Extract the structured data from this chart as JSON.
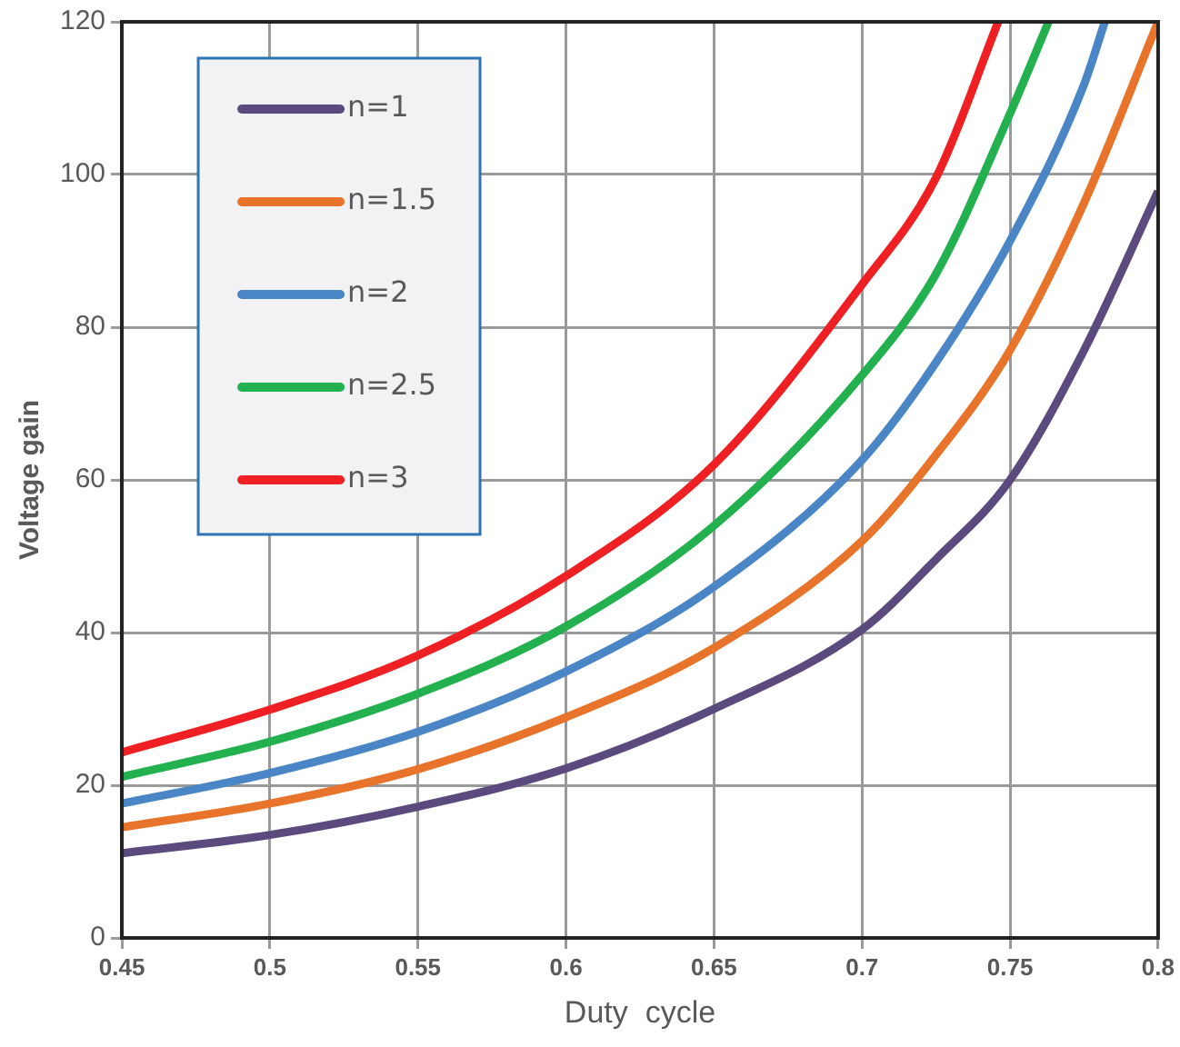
{
  "chart_data": {
    "type": "line",
    "xlabel": "Duty  cycle",
    "ylabel": "Voltage gain",
    "xlim": [
      0.45,
      0.8
    ],
    "xticks": [
      0.45,
      0.5,
      0.55,
      0.6,
      0.65,
      0.7,
      0.75,
      0.8
    ],
    "ylim": [
      0,
      120
    ],
    "yticks": [
      0,
      20,
      40,
      60,
      80,
      100,
      120
    ],
    "grid": true,
    "legend": "top left",
    "marker": "none",
    "series": [
      {
        "name": "n=1",
        "color": "#5b4a7e",
        "x": [
          0.45,
          0.5,
          0.55,
          0.6,
          0.65,
          0.7,
          0.725,
          0.75,
          0.775,
          0.8
        ],
        "values": [
          11.1,
          13.5,
          17.2,
          22.2,
          30,
          40.4,
          49.6,
          60,
          77,
          97.8
        ]
      },
      {
        "name": "n=1.5",
        "color": "#e8732a",
        "x": [
          0.45,
          0.5,
          0.55,
          0.6,
          0.65,
          0.7,
          0.725,
          0.75,
          0.775,
          0.8
        ],
        "values": [
          14.5,
          17.6,
          22.1,
          28.9,
          38,
          52,
          63.3,
          77,
          96.3,
          120
        ]
      },
      {
        "name": "n=2",
        "color": "#4a86c5",
        "x": [
          0.45,
          0.5,
          0.55,
          0.6,
          0.65,
          0.7,
          0.725,
          0.75,
          0.775,
          0.782
        ],
        "values": [
          17.6,
          21.6,
          27,
          34.9,
          46,
          62.6,
          75.4,
          91.3,
          111.8,
          120
        ]
      },
      {
        "name": "n=2.5",
        "color": "#23b04f",
        "x": [
          0.45,
          0.5,
          0.55,
          0.6,
          0.65,
          0.7,
          0.725,
          0.75,
          0.763
        ],
        "values": [
          21.1,
          25.7,
          32,
          40.8,
          54,
          73.7,
          87,
          108,
          120
        ]
      },
      {
        "name": "n=3",
        "color": "#ee2024",
        "x": [
          0.45,
          0.5,
          0.55,
          0.6,
          0.65,
          0.7,
          0.725,
          0.746
        ],
        "values": [
          24.3,
          29.9,
          37,
          47.4,
          62,
          85.6,
          99.6,
          120
        ]
      }
    ]
  }
}
